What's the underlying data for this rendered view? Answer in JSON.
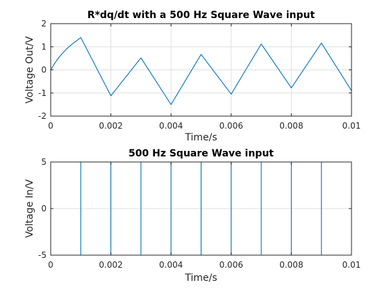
{
  "chart_data": [
    {
      "type": "line",
      "title": "R*dq/dt with a 500 Hz Square Wave input",
      "xlabel": "Time/s",
      "ylabel": "Voltage Out/V",
      "xlim": [
        0,
        0.01
      ],
      "ylim": [
        -2,
        2
      ],
      "xticks": [
        0,
        0.002,
        0.004,
        0.006,
        0.008,
        0.01
      ],
      "xtick_labels": [
        "0",
        "0.002",
        "0.004",
        "0.006",
        "0.008",
        "0.01"
      ],
      "yticks": [
        -2,
        -1,
        0,
        1,
        2
      ],
      "ytick_labels": [
        "-2",
        "-1",
        "0",
        "1",
        "2"
      ],
      "grid": true,
      "series": [
        {
          "color": "#0072bd",
          "x": [
            0,
            0.0001,
            0.0002,
            0.0003,
            0.0004,
            0.0005,
            0.0006,
            0.0007,
            0.0008,
            0.0009,
            0.001,
            0.002,
            0.003,
            0.004,
            0.005,
            0.006,
            0.007,
            0.008,
            0.009,
            0.01
          ],
          "y": [
            0,
            0.22,
            0.41,
            0.58,
            0.73,
            0.87,
            0.99,
            1.1,
            1.2,
            1.3,
            1.4,
            -1.12,
            0.52,
            -1.5,
            0.67,
            -1.05,
            1.12,
            -0.78,
            1.16,
            -0.9
          ]
        }
      ]
    },
    {
      "type": "line",
      "title": "500 Hz Square Wave input",
      "xlabel": "Time/s",
      "ylabel": "Voltage In/V",
      "xlim": [
        0,
        0.01
      ],
      "ylim": [
        -5,
        5
      ],
      "xticks": [
        0,
        0.002,
        0.004,
        0.006,
        0.008,
        0.01
      ],
      "xtick_labels": [
        "0",
        "0.002",
        "0.004",
        "0.006",
        "0.008",
        "0.01"
      ],
      "yticks": [
        -5,
        0,
        5
      ],
      "ytick_labels": [
        "-5",
        "0",
        "5"
      ],
      "grid": true,
      "series": [
        {
          "color": "#0072bd",
          "x": [
            0,
            0.001,
            0.001,
            0.002,
            0.002,
            0.003,
            0.003,
            0.004,
            0.004,
            0.005,
            0.005,
            0.006,
            0.006,
            0.007,
            0.007,
            0.008,
            0.008,
            0.009,
            0.009,
            0.01
          ],
          "y": [
            5,
            5,
            -5,
            -5,
            5,
            5,
            -5,
            -5,
            5,
            5,
            -5,
            -5,
            5,
            5,
            -5,
            -5,
            5,
            5,
            -5,
            -5
          ]
        }
      ]
    }
  ]
}
